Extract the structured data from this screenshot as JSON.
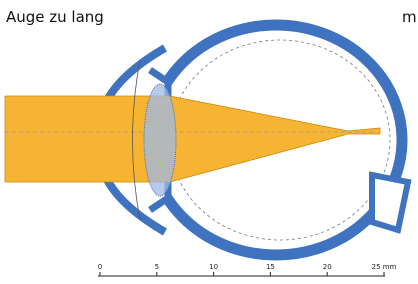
{
  "label": "Auge zu lang",
  "corner_text": "m",
  "scale": {
    "labels": [
      "0",
      "5",
      "10",
      "15",
      "20",
      "25 mm"
    ]
  }
}
